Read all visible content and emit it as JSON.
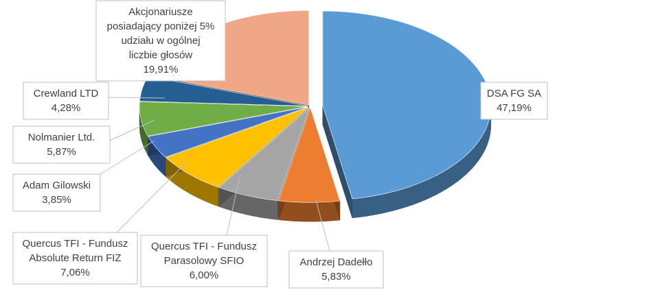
{
  "chart_data": {
    "type": "pie",
    "title": "",
    "style": "3d-exploded",
    "slices": [
      {
        "label": [
          "DSA FG SA"
        ],
        "percent_text": "47,19%",
        "value": 47.19,
        "color": "#5b9bd5"
      },
      {
        "label": [
          "Andrzej Dadełło"
        ],
        "percent_text": "5,83%",
        "value": 5.83,
        "color": "#ed7d31"
      },
      {
        "label": [
          "Quercus TFI - Fundusz",
          "Parasolowy SFIO"
        ],
        "percent_text": "6,00%",
        "value": 6.0,
        "color": "#a5a5a5"
      },
      {
        "label": [
          "Quercus TFI - Fundusz",
          "Absolute Return FIZ"
        ],
        "percent_text": "7,06%",
        "value": 7.06,
        "color": "#ffc000"
      },
      {
        "label": [
          "Adam Gilowski"
        ],
        "percent_text": "3,85%",
        "value": 3.85,
        "color": "#4472c4"
      },
      {
        "label": [
          "Nolmanier Ltd."
        ],
        "percent_text": "5,87%",
        "value": 5.87,
        "color": "#70ad47"
      },
      {
        "label": [
          "Crewland LTD"
        ],
        "percent_text": "4,28%",
        "value": 4.28,
        "color": "#255e91"
      },
      {
        "label": [
          "Akcjonariusze",
          "posiadający poniżej 5%",
          "udziału w ogólnej",
          "liczbie głosów"
        ],
        "percent_text": "19,91%",
        "value": 19.91,
        "color": "#f0a788"
      }
    ]
  }
}
